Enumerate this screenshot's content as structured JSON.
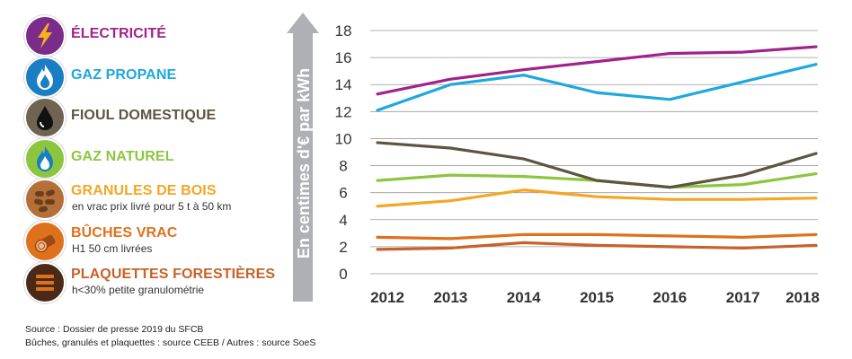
{
  "legend": [
    {
      "label": "ÉLECTRICITÉ",
      "sublabel": "",
      "color": "#A0228A",
      "icon": "lightning-icon"
    },
    {
      "label": "GAZ PROPANE",
      "sublabel": "",
      "color": "#1DA8E0",
      "icon": "flame-icon"
    },
    {
      "label": "FIOUL DOMESTIQUE",
      "sublabel": "",
      "color": "#5E5541",
      "icon": "oil-drop-icon"
    },
    {
      "label": "GAZ NATUREL",
      "sublabel": "",
      "color": "#8CC63F",
      "icon": "flame-icon"
    },
    {
      "label": "GRANULES DE BOIS",
      "sublabel": "en vrac prix livré pour 5 t à 50 km",
      "color": "#F5A623",
      "icon": "wood-pellets-icon"
    },
    {
      "label": "BÛCHES VRAC",
      "sublabel": "H1 50 cm livrées",
      "color": "#E0711C",
      "icon": "log-icon"
    },
    {
      "label": "PLAQUETTES FORESTIÈRES",
      "sublabel": "h<30% petite granulométrie",
      "color": "#C8612A",
      "icon": "wood-chips-icon"
    }
  ],
  "source": {
    "line1": "Source : Dossier de presse 2019 du SFCB",
    "line2": "Bûches, granulés et plaquettes : source CEEB / Autres : source SoeS"
  },
  "chart_data": {
    "type": "line",
    "title": "",
    "xlabel": "",
    "ylabel": "En centimes d'€ par kWh",
    "categories": [
      "2012",
      "2013",
      "2014",
      "2015",
      "2016",
      "2017",
      "2018"
    ],
    "ylim": [
      0,
      18
    ],
    "yticks": [
      0,
      2,
      4,
      6,
      8,
      10,
      12,
      14,
      16,
      18
    ],
    "grid": true,
    "series": [
      {
        "name": "ÉLECTRICITÉ",
        "color": "#A0228A",
        "values": [
          13.3,
          14.4,
          15.1,
          15.7,
          16.3,
          16.4,
          16.8
        ]
      },
      {
        "name": "GAZ PROPANE",
        "color": "#1DA8E0",
        "values": [
          12.1,
          14.0,
          14.7,
          13.4,
          12.9,
          14.2,
          15.5
        ]
      },
      {
        "name": "FIOUL DOMESTIQUE",
        "color": "#5E5541",
        "values": [
          9.7,
          9.3,
          8.5,
          6.9,
          6.4,
          7.3,
          8.9
        ]
      },
      {
        "name": "GAZ NATUREL",
        "color": "#8CC63F",
        "values": [
          6.9,
          7.3,
          7.2,
          6.9,
          6.4,
          6.6,
          7.4
        ]
      },
      {
        "name": "GRANULES DE BOIS",
        "color": "#F5A623",
        "values": [
          5.0,
          5.4,
          6.2,
          5.7,
          5.5,
          5.5,
          5.6
        ]
      },
      {
        "name": "BÛCHES VRAC",
        "color": "#E0711C",
        "values": [
          2.7,
          2.6,
          2.9,
          2.9,
          2.8,
          2.7,
          2.9
        ]
      },
      {
        "name": "PLAQUETTES FORESTIÈRES",
        "color": "#C8612A",
        "values": [
          1.8,
          1.9,
          2.3,
          2.1,
          2.0,
          1.9,
          2.1
        ]
      }
    ]
  }
}
